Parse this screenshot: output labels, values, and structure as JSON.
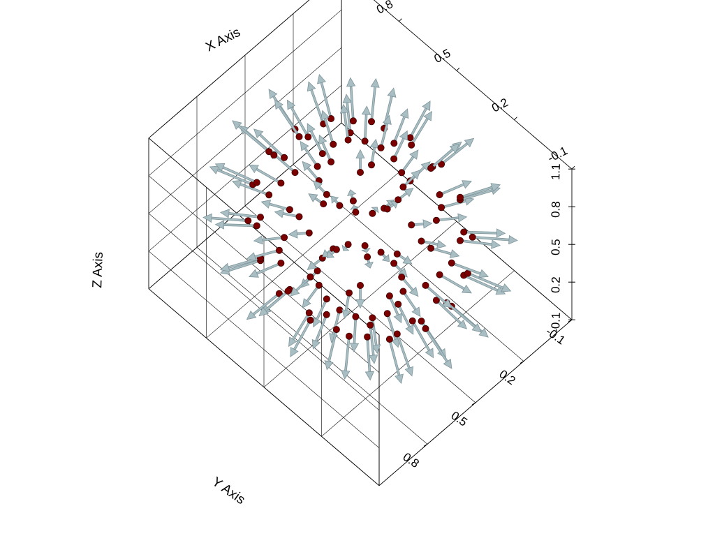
{
  "chart_data": {
    "type": "3d-vector-field",
    "title": "",
    "xlabel": "X Axis",
    "ylabel": "Y Axis",
    "zlabel": "Z Axis",
    "xticks": [
      "-0.1",
      "0.2",
      "0.5",
      "0.8"
    ],
    "yticks": [
      "-0.1",
      "0.2",
      "0.5",
      "0.8"
    ],
    "zticks": [
      "-0.1",
      "0.2",
      "0.5",
      "0.8",
      "1.1"
    ],
    "xlim": [
      -0.1,
      1.1
    ],
    "ylim": [
      -0.1,
      1.1
    ],
    "zlim": [
      -0.1,
      1.1
    ],
    "grid": true,
    "description_of_field": "radial vectors pointing outward from the center of a sphere of points",
    "sphere_center": [
      0.5,
      0.5,
      0.5
    ],
    "sphere_radius": 0.45,
    "vector_length": 0.18,
    "n_latitude": 8,
    "n_longitude": 16,
    "colors": {
      "point": "#7a0000",
      "arrow": "#a8bec3",
      "arrow_shade": "#7e959b",
      "grid": "#000000"
    }
  }
}
